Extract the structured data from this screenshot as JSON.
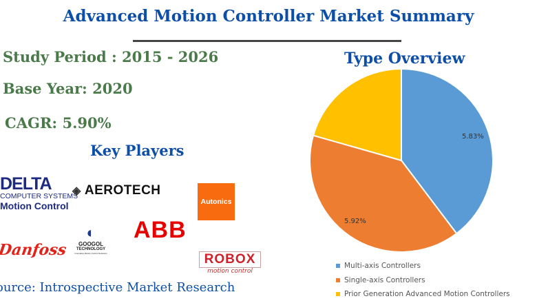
{
  "title": "Advanced Motion Controller Market Summary",
  "study_period": "Study Period : 2015 - 2026",
  "base_year": "Base Year: 2020",
  "cagr": "CAGR: 5.90%",
  "key_players_heading": "Key Players",
  "key_players": [
    {
      "name": "DELTA",
      "sub1": "COMPUTER SYSTEMS",
      "sub2": "Motion Control"
    },
    {
      "name": "AEROTECH"
    },
    {
      "name": "Autonics"
    },
    {
      "name": "Danfoss"
    },
    {
      "name": "GOOGOL",
      "sub1": "TECHNOLOGY",
      "sub2": "Innovative Motion Control Solutions"
    },
    {
      "name": "ABB"
    },
    {
      "name": "ROBOX",
      "sub1": "motion control"
    }
  ],
  "source": "ource: Introspective Market Research",
  "chart_data": {
    "type": "pie",
    "title": "Type Overview",
    "start_angle_deg": 0,
    "direction": "clockwise",
    "slices": [
      {
        "name": "Multi-axis Controllers",
        "share": 39.7,
        "label": "5.83%",
        "color": "#5b9bd5"
      },
      {
        "name": "Single-axis Controllers",
        "share": 39.7,
        "label": "5.92%",
        "color": "#ed7d31"
      },
      {
        "name": "Prior Generation Advanced Motion Controllers",
        "share": 20.6,
        "label": "",
        "color": "#ffc000"
      }
    ],
    "legend_position": "bottom"
  }
}
